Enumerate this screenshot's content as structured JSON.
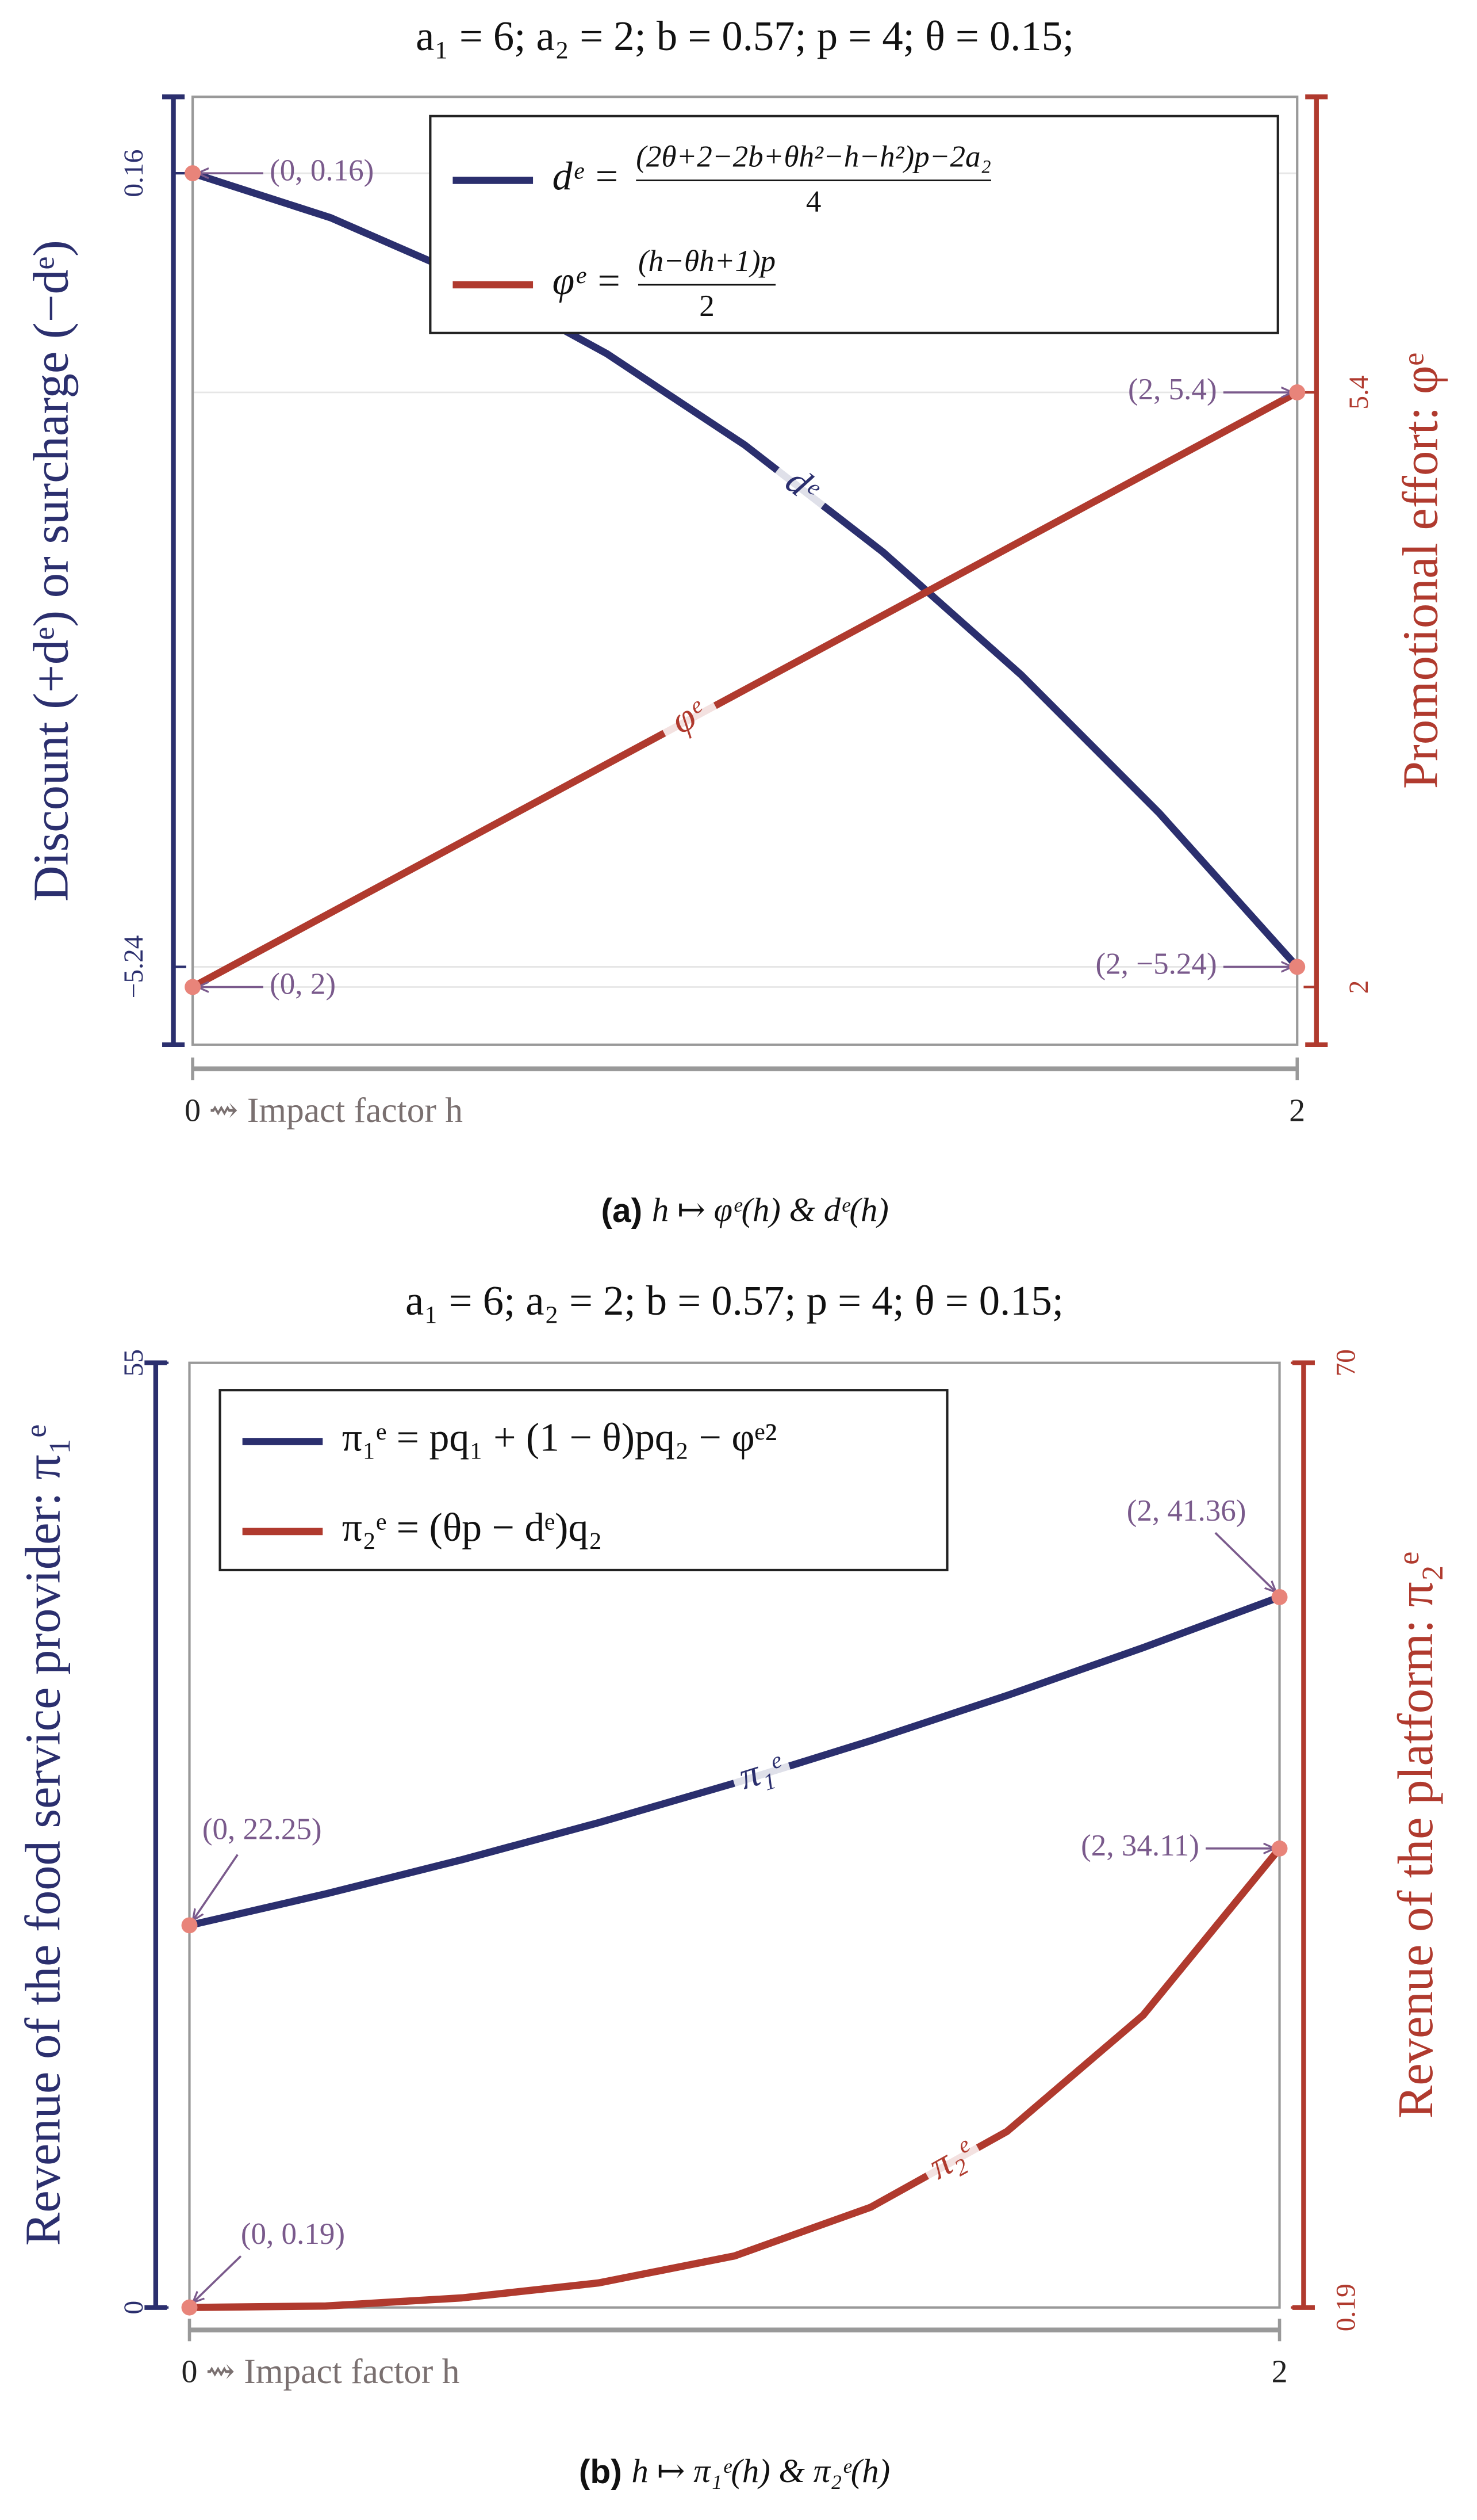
{
  "chart_data": [
    {
      "type": "line",
      "title": "a₁ = 6; a₂ = 2; b = 0.57; p = 4; θ = 0.15;",
      "caption": {
        "tag": "(a)",
        "text": "h ↦ φᵉ(h) & dᵉ(h)"
      },
      "xlabel": "⇝ Impact factor h",
      "ylabel": "Discount (+dᵉ) or surcharge (−dᵉ)",
      "y2label": "Promotional effort: φᵉ",
      "x": [
        0,
        0.25,
        0.5,
        0.75,
        1,
        1.25,
        1.5,
        1.75,
        2
      ],
      "xlim": [
        0,
        2
      ],
      "xticks": [
        0,
        2
      ],
      "ylim": [
        -5.77,
        0.68
      ],
      "yticks": [
        {
          "value": -5.24,
          "label": "−5.24"
        },
        0.16
      ],
      "y2lim": [
        1.67,
        7.09
      ],
      "y2ticks": [
        2,
        5.4
      ],
      "grid": true,
      "annotation_color": "#7a5a8c",
      "point_color": "#e8847a",
      "series": [
        {
          "name": "dᵉ",
          "color": "#2b2f6e",
          "values": [
            0.16,
            -0.143,
            -0.5525,
            -1.068,
            -1.69,
            -2.418,
            -3.2525,
            -4.193,
            -5.24
          ],
          "formula": {
            "lhs": "dᵉ =",
            "numerator": "(2θ+2−2b+θh²−h−h²)p−2a₂",
            "denominator": "4"
          }
        },
        {
          "name": "φᵉ",
          "color": "#b03a2e",
          "axis": "y2",
          "values": [
            2,
            2.425,
            2.85,
            3.275,
            3.7,
            4.125,
            4.55,
            4.975,
            5.4
          ],
          "formula": {
            "lhs": "φᵉ =",
            "numerator": "(h−θh+1)p",
            "denominator": "2"
          }
        }
      ],
      "annotations": [
        {
          "text": "(0, 0.16)",
          "x": 0,
          "y": 0.16
        },
        {
          "text": "(2, 5.4)",
          "x": 2,
          "y": 5.4,
          "axis": "y2"
        },
        {
          "text": "(0, 2)",
          "x": 0,
          "y": 2,
          "axis": "y2"
        },
        {
          "text": "(2, −5.24)",
          "x": 2,
          "y": -5.24
        }
      ]
    },
    {
      "type": "line",
      "title": "a₁ = 6; a₂ = 2; b = 0.57; p = 4; θ = 0.15;",
      "caption": {
        "tag": "(b)",
        "text": "h ↦ π₁ᵉ(h) & π₂ᵉ(h)"
      },
      "xlabel": "⇝ Impact factor h",
      "ylabel": "Revenue of the food service provider: π₁ᵉ",
      "y2label": "Revenue of the platform: π₂ᵉ",
      "x": [
        0,
        0.25,
        0.5,
        0.75,
        1,
        1.25,
        1.5,
        1.75,
        2
      ],
      "xlim": [
        0,
        2
      ],
      "xticks": [
        0,
        2
      ],
      "ylim": [
        0,
        55
      ],
      "yticks": [
        0,
        55
      ],
      "y2lim": [
        0.19,
        70
      ],
      "y2ticks": [
        0.19,
        70
      ],
      "grid": false,
      "annotation_color": "#7a5a8c",
      "point_color": "#e8847a",
      "series": [
        {
          "name": "π₁ᵉ",
          "color": "#2b2f6e",
          "values": [
            22.25,
            24.08,
            26.07,
            28.22,
            30.53,
            33.0,
            35.63,
            38.42,
            41.36
          ],
          "formula": {
            "text": "π₁ᵉ = pq₁ + (1 − θ)pq₂ − φᵉ²"
          }
        },
        {
          "name": "π₂ᵉ",
          "color": "#b03a2e",
          "axis": "y2",
          "values": [
            0.19,
            0.3,
            0.9,
            2.0,
            4.0,
            7.6,
            13.2,
            21.8,
            34.11
          ],
          "formula": {
            "text": "π₂ᵉ = (θp − dᵉ)q₂"
          }
        }
      ],
      "annotations": [
        {
          "text": "(0, 22.25)",
          "x": 0,
          "y": 22.25
        },
        {
          "text": "(2, 41.36)",
          "x": 2,
          "y": 41.36
        },
        {
          "text": "(0, 0.19)",
          "x": 0,
          "y": 0.19,
          "axis": "y2"
        },
        {
          "text": "(2, 34.11)",
          "x": 2,
          "y": 34.11,
          "axis": "y2"
        }
      ]
    }
  ]
}
